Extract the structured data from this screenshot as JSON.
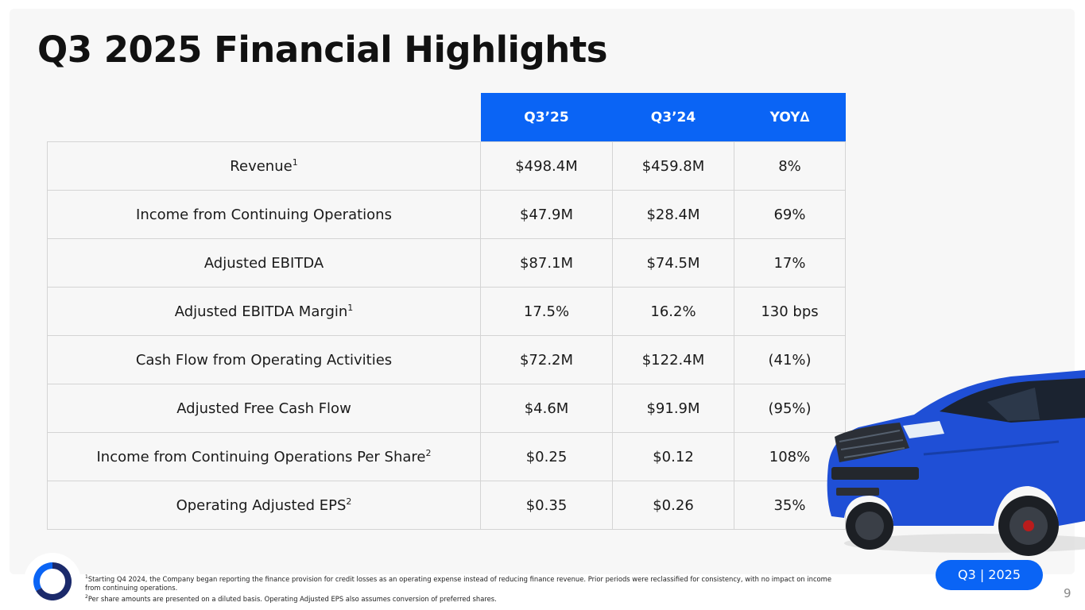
{
  "slide": {
    "title": "Q3 2025 Financial Highlights",
    "period_badge": "Q3 | 2025",
    "page_number": "9"
  },
  "table": {
    "headers": [
      "Q3’25",
      "Q3’24",
      "YOY∆"
    ],
    "rows": [
      {
        "label": "Revenue",
        "sup": "1",
        "q325": "$498.4M",
        "q324": "$459.8M",
        "yoy": "8%"
      },
      {
        "label": "Income from Continuing Operations",
        "sup": "",
        "q325": "$47.9M",
        "q324": "$28.4M",
        "yoy": "69%"
      },
      {
        "label": "Adjusted EBITDA",
        "sup": "",
        "q325": "$87.1M",
        "q324": "$74.5M",
        "yoy": "17%"
      },
      {
        "label": "Adjusted EBITDA Margin",
        "sup": "1",
        "q325": "17.5%",
        "q324": "16.2%",
        "yoy": "130 bps"
      },
      {
        "label": "Cash Flow from Operating Activities",
        "sup": "",
        "q325": "$72.2M",
        "q324": "$122.4M",
        "yoy": "(41%)"
      },
      {
        "label": "Adjusted Free Cash Flow",
        "sup": "",
        "q325": "$4.6M",
        "q324": "$91.9M",
        "yoy": "(95%)"
      },
      {
        "label": "Income from Continuing Operations Per Share",
        "sup": "2",
        "q325": "$0.25",
        "q324": "$0.12",
        "yoy": "108%"
      },
      {
        "label": "Operating Adjusted EPS",
        "sup": "2",
        "q325": "$0.35",
        "q324": "$0.26",
        "yoy": "35%"
      }
    ]
  },
  "footnotes": [
    {
      "mark": "1",
      "text": "Starting Q4 2024, the Company began reporting the finance provision for credit losses as an operating expense instead of reducing finance revenue. Prior periods were reclassified for consistency, with no impact on income from continuing operations."
    },
    {
      "mark": "2",
      "text": "Per share amounts are presented on a diluted basis. Operating Adjusted EPS also assumes conversion of preferred shares."
    }
  ],
  "colors": {
    "accent": "#0a64f5",
    "panel": "#f7f7f7",
    "grid": "#d4d4d4",
    "logo_dark": "#1b2a6b"
  }
}
